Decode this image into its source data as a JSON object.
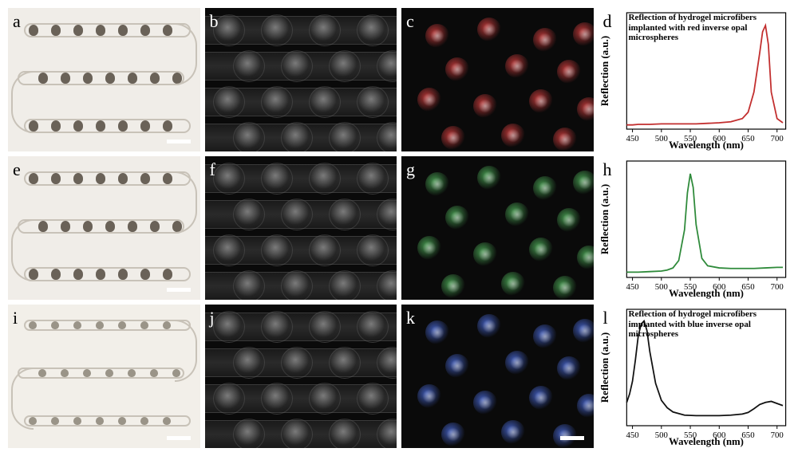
{
  "grid": {
    "rows": 3,
    "cols": 4
  },
  "panels": {
    "a": {
      "label": "a",
      "type": "brightfield",
      "bg": "#f0ede8",
      "fiber_color": "#c8c2b8",
      "bead_color": "#6a6258",
      "scalebar_color": "#ffffff"
    },
    "b": {
      "label": "b",
      "type": "darkfield_fibers",
      "bg": "#0a0a0a"
    },
    "c": {
      "label": "c",
      "type": "darkfield_dots",
      "bg": "#050505",
      "dot_color": "#d84040"
    },
    "d": {
      "label": "d",
      "type": "spectrum",
      "caption": "Reflection of hydrogel microfibers implanted with red inverse opal microspheres",
      "line_color": "#c22e2e",
      "x": [
        440,
        450,
        460,
        480,
        500,
        520,
        540,
        560,
        580,
        600,
        620,
        640,
        650,
        660,
        670,
        675,
        680,
        685,
        690,
        700,
        710
      ],
      "y": [
        0.04,
        0.04,
        0.045,
        0.045,
        0.05,
        0.05,
        0.05,
        0.05,
        0.055,
        0.06,
        0.07,
        0.1,
        0.16,
        0.35,
        0.72,
        0.92,
        0.98,
        0.8,
        0.35,
        0.1,
        0.06
      ],
      "xlim": [
        440,
        715
      ],
      "ylim": [
        0,
        1.1
      ],
      "xticks": [
        450,
        500,
        550,
        600,
        650,
        700
      ],
      "xlabel": "Wavelength (nm)",
      "ylabel": "Reflection (a.u.)",
      "label_fontsize": 13,
      "tick_fontsize": 11
    },
    "e": {
      "label": "e",
      "type": "brightfield",
      "bg": "#f0ede8",
      "fiber_color": "#c8c2b8",
      "bead_color": "#6a6258",
      "scalebar_color": "#ffffff"
    },
    "f": {
      "label": "f",
      "type": "darkfield_fibers",
      "bg": "#0a0a0a"
    },
    "g": {
      "label": "g",
      "type": "darkfield_dots",
      "bg": "#050505",
      "dot_color": "#4fb05a"
    },
    "h": {
      "label": "h",
      "type": "spectrum",
      "caption": "",
      "line_color": "#2e8a3a",
      "x": [
        440,
        450,
        460,
        480,
        500,
        510,
        520,
        530,
        540,
        545,
        550,
        555,
        560,
        570,
        580,
        600,
        620,
        640,
        660,
        680,
        700,
        710
      ],
      "y": [
        0.05,
        0.05,
        0.05,
        0.055,
        0.06,
        0.07,
        0.09,
        0.16,
        0.45,
        0.8,
        0.98,
        0.85,
        0.5,
        0.18,
        0.11,
        0.09,
        0.085,
        0.085,
        0.085,
        0.09,
        0.095,
        0.095
      ],
      "xlim": [
        440,
        715
      ],
      "ylim": [
        0,
        1.1
      ],
      "xticks": [
        450,
        500,
        550,
        600,
        650,
        700
      ],
      "xlabel": "Wavelength (nm)",
      "ylabel": "Reflection (a.u.)",
      "label_fontsize": 13,
      "tick_fontsize": 11
    },
    "i": {
      "label": "i",
      "type": "brightfield_thin",
      "bg": "#f2efe9",
      "fiber_color": "#d0ccc2",
      "bead_color": "#9a9488",
      "scalebar_color": "#ffffff"
    },
    "j": {
      "label": "j",
      "type": "darkfield_fibers",
      "bg": "#0a0a0a"
    },
    "k": {
      "label": "k",
      "type": "darkfield_dots",
      "bg": "#050505",
      "dot_color": "#4a6ad8",
      "scalebar_color": "#ffffff",
      "scalebar_show": true
    },
    "l": {
      "label": "l",
      "type": "spectrum",
      "caption": "Reflection of hydrogel microfibers implanted with blue inverse opal microspheres",
      "line_color": "#111111",
      "x": [
        440,
        445,
        450,
        455,
        460,
        465,
        470,
        475,
        480,
        490,
        500,
        510,
        520,
        540,
        560,
        580,
        600,
        620,
        640,
        650,
        660,
        670,
        680,
        690,
        700,
        710
      ],
      "y": [
        0.22,
        0.3,
        0.42,
        0.62,
        0.85,
        0.96,
        0.99,
        0.9,
        0.7,
        0.4,
        0.24,
        0.17,
        0.13,
        0.1,
        0.095,
        0.095,
        0.095,
        0.1,
        0.11,
        0.125,
        0.16,
        0.2,
        0.22,
        0.23,
        0.21,
        0.19
      ],
      "xlim": [
        440,
        715
      ],
      "ylim": [
        0,
        1.1
      ],
      "xticks": [
        450,
        500,
        550,
        600,
        650,
        700
      ],
      "xlabel": "Wavelength (nm)",
      "ylabel": "Reflection (a.u.)",
      "label_fontsize": 13,
      "tick_fontsize": 11
    }
  },
  "order": [
    "a",
    "b",
    "c",
    "d",
    "e",
    "f",
    "g",
    "h",
    "i",
    "j",
    "k",
    "l"
  ]
}
